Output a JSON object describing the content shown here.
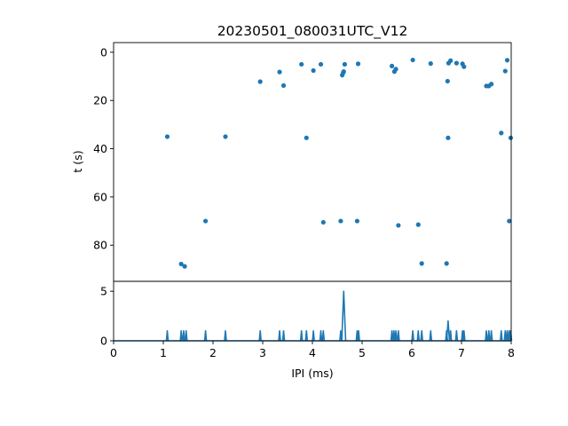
{
  "chart_data": [
    {
      "type": "scatter",
      "title": "20230501_080031UTC_V12",
      "ylabel": "t (s)",
      "xlim": [
        0,
        8
      ],
      "ylim": [
        95,
        -4
      ],
      "yticks": [
        0,
        20,
        40,
        60,
        80
      ],
      "color": "#1f77b4",
      "points": [
        [
          1.08,
          35.0
        ],
        [
          1.36,
          87.8
        ],
        [
          1.43,
          88.8
        ],
        [
          1.85,
          70.0
        ],
        [
          2.25,
          35.0
        ],
        [
          2.95,
          12.2
        ],
        [
          3.34,
          8.2
        ],
        [
          3.42,
          13.8
        ],
        [
          3.78,
          5.0
        ],
        [
          3.88,
          35.5
        ],
        [
          4.02,
          7.6
        ],
        [
          4.17,
          5.0
        ],
        [
          4.22,
          70.5
        ],
        [
          4.57,
          70.0
        ],
        [
          4.6,
          9.5
        ],
        [
          4.62,
          8.5
        ],
        [
          4.63,
          8.0
        ],
        [
          4.65,
          5.0
        ],
        [
          4.9,
          70.0
        ],
        [
          4.92,
          4.8
        ],
        [
          5.6,
          5.7
        ],
        [
          5.65,
          8.0
        ],
        [
          5.68,
          7.0
        ],
        [
          5.73,
          71.8
        ],
        [
          6.02,
          3.2
        ],
        [
          6.13,
          71.5
        ],
        [
          6.2,
          87.6
        ],
        [
          6.38,
          4.7
        ],
        [
          6.7,
          87.6
        ],
        [
          6.72,
          12.0
        ],
        [
          6.73,
          35.5
        ],
        [
          6.74,
          4.5
        ],
        [
          6.78,
          3.5
        ],
        [
          6.9,
          4.5
        ],
        [
          7.02,
          4.8
        ],
        [
          7.05,
          6.0
        ],
        [
          7.5,
          14.0
        ],
        [
          7.55,
          14.0
        ],
        [
          7.6,
          13.2
        ],
        [
          7.8,
          33.5
        ],
        [
          7.88,
          7.8
        ],
        [
          7.92,
          3.3
        ],
        [
          7.96,
          70.0
        ],
        [
          7.99,
          35.5
        ]
      ]
    },
    {
      "type": "line",
      "xlabel": "IPI (ms)",
      "xlim": [
        0,
        8
      ],
      "ylim": [
        0,
        6
      ],
      "xticks": [
        0,
        1,
        2,
        3,
        4,
        5,
        6,
        7,
        8
      ],
      "yticks": [
        0,
        5
      ],
      "color": "#1f77b4",
      "peaks": [
        [
          1.08,
          1
        ],
        [
          1.36,
          1
        ],
        [
          1.41,
          1
        ],
        [
          1.46,
          1
        ],
        [
          1.85,
          1
        ],
        [
          2.25,
          1
        ],
        [
          2.95,
          1
        ],
        [
          3.34,
          1
        ],
        [
          3.42,
          1
        ],
        [
          3.78,
          1
        ],
        [
          3.88,
          1
        ],
        [
          4.02,
          1
        ],
        [
          4.17,
          1
        ],
        [
          4.22,
          1
        ],
        [
          4.57,
          1
        ],
        [
          4.63,
          5
        ],
        [
          4.9,
          1
        ],
        [
          4.93,
          1
        ],
        [
          5.6,
          1
        ],
        [
          5.64,
          1
        ],
        [
          5.68,
          1
        ],
        [
          5.73,
          1
        ],
        [
          6.02,
          1
        ],
        [
          6.13,
          1
        ],
        [
          6.2,
          1
        ],
        [
          6.38,
          1
        ],
        [
          6.7,
          1
        ],
        [
          6.73,
          2
        ],
        [
          6.78,
          1
        ],
        [
          6.9,
          1
        ],
        [
          7.02,
          1
        ],
        [
          7.05,
          1
        ],
        [
          7.5,
          1
        ],
        [
          7.55,
          1
        ],
        [
          7.6,
          1
        ],
        [
          7.8,
          1
        ],
        [
          7.88,
          1
        ],
        [
          7.92,
          1
        ],
        [
          7.96,
          1
        ],
        [
          7.99,
          1
        ]
      ]
    }
  ]
}
